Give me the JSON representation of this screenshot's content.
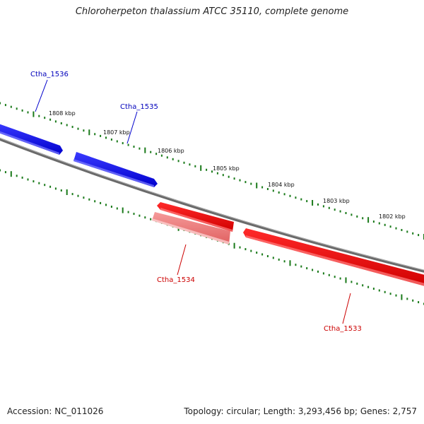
{
  "title": "Chloroherpeton thalassium ATCC 35110, complete genome",
  "accession": "Accession: NC_011026",
  "summary": "Topology: circular; Length: 3,293,456 bp; Genes: 2,757",
  "ruler": {
    "labels": [
      "1808 kbp",
      "1807 kbp",
      "1806 kbp",
      "1805 kbp",
      "1804 kbp",
      "1803 kbp",
      "1802 kbp"
    ],
    "tick_color": "#1a7a1a"
  },
  "genes": [
    {
      "name": "Ctha_1536",
      "strand": "forward",
      "color": "#0000dd",
      "label_color": "#0000bb"
    },
    {
      "name": "Ctha_1535",
      "strand": "forward",
      "color": "#0000dd",
      "label_color": "#0000bb"
    },
    {
      "name": "Ctha_1534",
      "strand": "reverse",
      "color": "#f08080",
      "label_color": "#cc0000"
    },
    {
      "name": "Ctha_1533",
      "strand": "reverse",
      "color": "#ee0000",
      "label_color": "#cc0000"
    }
  ],
  "backbone_color": "#808080"
}
